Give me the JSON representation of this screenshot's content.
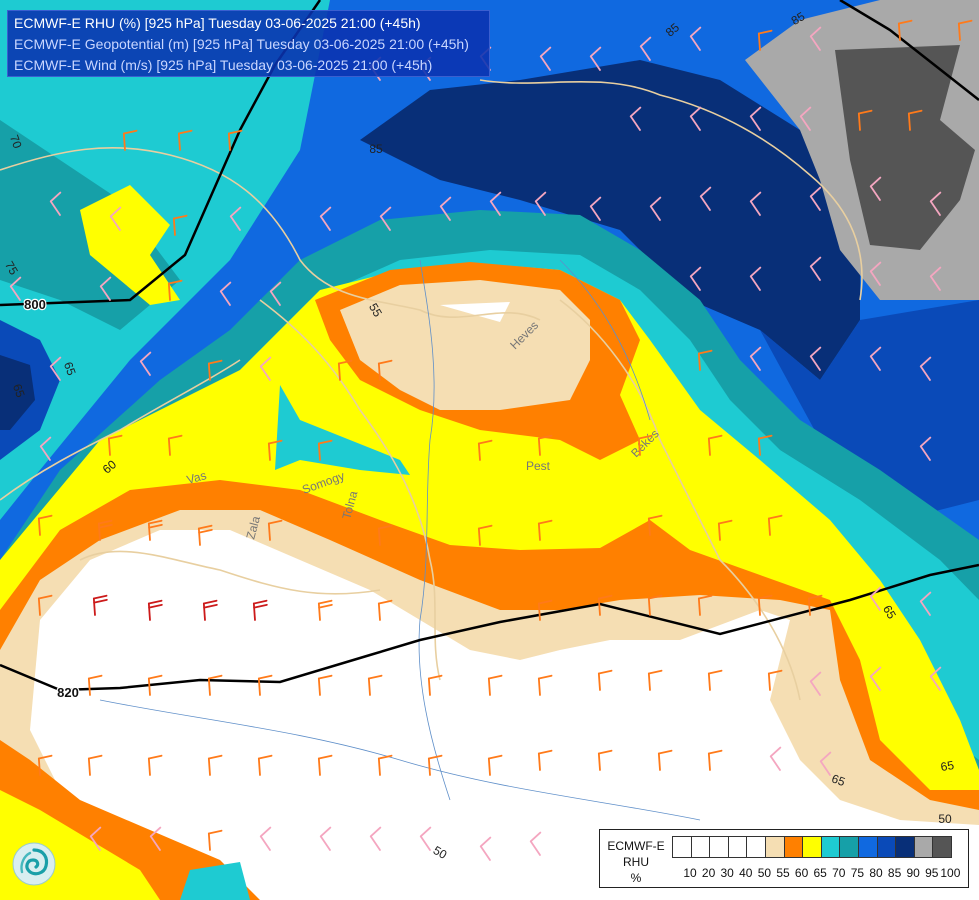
{
  "header": {
    "line1": "ECMWF-E RHU (%) [925 hPa] Tuesday 03-06-2025 21:00 (+45h)",
    "line2": "ECMWF-E Geopotential (m) [925 hPa] Tuesday 03-06-2025 21:00 (+45h)",
    "line3": "ECMWF-E Wind (m/s) [925 hPa] Tuesday 03-06-2025 21:00 (+45h)"
  },
  "legend": {
    "line1": "ECMWF-E",
    "line2": "RHU",
    "line3": "%",
    "levels": [
      "10",
      "20",
      "30",
      "40",
      "50",
      "55",
      "60",
      "65",
      "70",
      "75",
      "80",
      "85",
      "90",
      "95",
      "100"
    ],
    "colors": [
      "#ffffff",
      "#ffffff",
      "#ffffff",
      "#ffffff",
      "#ffffff",
      "#f5deb3",
      "#ff8000",
      "#ffff00",
      "#1ecbd2",
      "#16a0a8",
      "#1069e0",
      "#0a4ab8",
      "#082f78",
      "#a9a9a9",
      "#555555"
    ]
  },
  "colors": {
    "white": "#ffffff",
    "wheat": "#f5deb3",
    "orange": "#ff8000",
    "yellow": "#ffff00",
    "cyan": "#1ecbd2",
    "teal": "#16a0a8",
    "blue": "#1069e0",
    "mid_blue": "#0a4ab8",
    "navy": "#082f78",
    "grey": "#a9a9a9",
    "dark_grey": "#555555"
  },
  "contour_labels": {
    "geopotential": [
      "800",
      "820"
    ],
    "rhu": [
      "85",
      "85",
      "85",
      "70",
      "75",
      "65",
      "65",
      "65",
      "60",
      "65",
      "55",
      "50",
      "50",
      "65"
    ]
  },
  "place_labels": [
    "Heves",
    "Pest",
    "Békés",
    "Vas",
    "Somogy",
    "Zala",
    "Tolna"
  ],
  "icons": {
    "logo": "swirl-logo-icon",
    "wind": "wind-barb-icon"
  }
}
